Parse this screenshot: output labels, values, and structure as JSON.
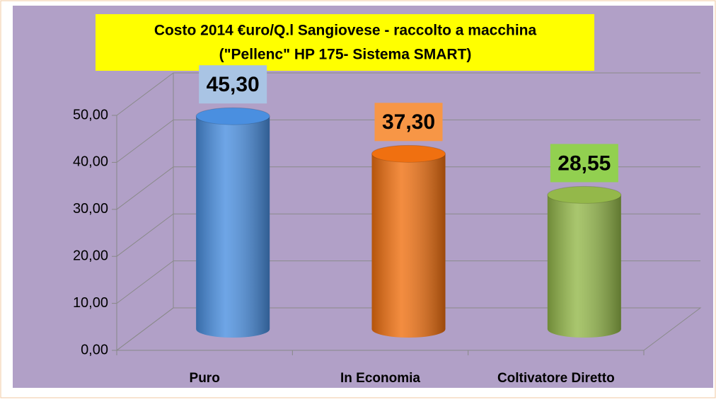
{
  "chart_data": {
    "type": "bar",
    "title": "Costo   2014 €uro/Q.l Sangiovese - raccolto   a macchina",
    "subtitle": "(\"Pellenc\" HP  175- Sistema SMART)",
    "categories": [
      "Puro",
      "In Economia",
      "Coltivatore Diretto"
    ],
    "values": [
      45.3,
      37.3,
      28.55
    ],
    "value_labels": [
      "45,30",
      "37,30",
      "28,55"
    ],
    "colors": [
      "#4a8fe0",
      "#f07010",
      "#94b84a"
    ],
    "label_colors": [
      "#a9c4e4",
      "#f79646",
      "#92d050"
    ],
    "ylim": [
      0,
      50
    ],
    "yticks": [
      {
        "value": 0,
        "label": "0,00"
      },
      {
        "value": 10,
        "label": "10,00"
      },
      {
        "value": 20,
        "label": "20,00"
      },
      {
        "value": 30,
        "label": "30,00"
      },
      {
        "value": 40,
        "label": "40,00"
      },
      {
        "value": 50,
        "label": "50,00"
      }
    ],
    "grid": true
  }
}
